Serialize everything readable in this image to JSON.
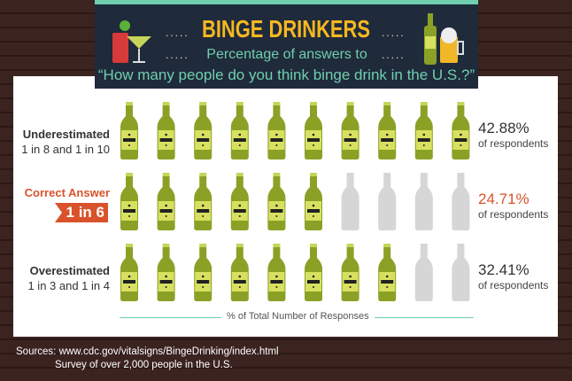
{
  "header": {
    "title": "BINGE DRINKERS",
    "subtitle": "Percentage of answers to",
    "question": "“How many people do you think binge drink in the U.S.?”"
  },
  "chart_data": {
    "type": "pictogram",
    "bottles_per_row": 10,
    "xlabel": "% of Total Number of Responses",
    "colors": {
      "filled": "#8aa126",
      "empty": "#d6d6d6",
      "label_accent": "#d9522b"
    },
    "rows": [
      {
        "label": "Underestimated",
        "sublabel": "1 in 8 and 1 in 10",
        "value": 42.88,
        "value_text": "42.88%",
        "unit_text": "of respondents",
        "filled": 10
      },
      {
        "label": "Correct Answer",
        "sublabel": "1 in 6",
        "value": 24.71,
        "value_text": "24.71%",
        "unit_text": "of respondents",
        "filled": 6
      },
      {
        "label": "Overestimated",
        "sublabel": "1 in 3 and 1 in 4",
        "value": 32.41,
        "value_text": "32.41%",
        "unit_text": "of respondents",
        "filled": 8
      }
    ]
  },
  "sources": {
    "line1": "Sources: www.cdc.gov/vitalsigns/BingeDrinking/index.html",
    "line2": "Survey of over 2,000 people in the U.S."
  }
}
